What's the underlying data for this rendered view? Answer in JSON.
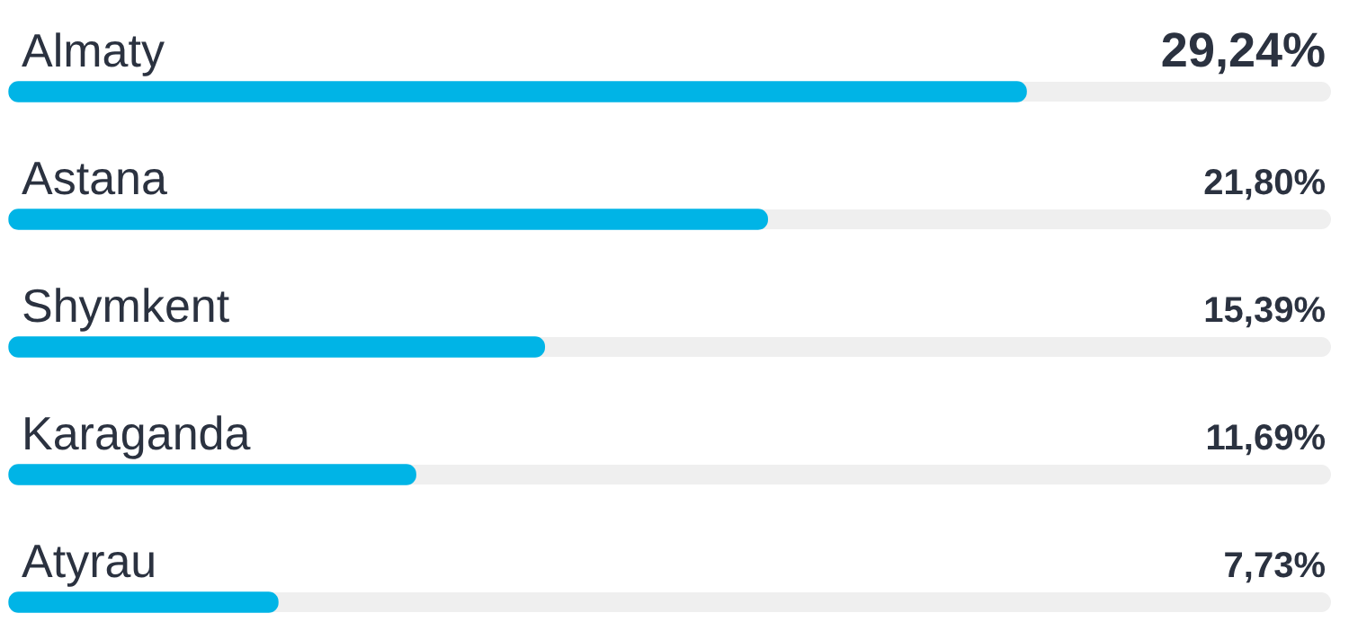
{
  "chart_data": {
    "type": "bar",
    "orientation": "horizontal",
    "categories": [
      "Almaty",
      "Astana",
      "Shymkent",
      "Karaganda",
      "Atyrau"
    ],
    "values": [
      29.24,
      21.8,
      15.39,
      11.69,
      7.73
    ],
    "value_labels": [
      "29,24%",
      "21,80%",
      "15,39%",
      "11,69%",
      "7,73%"
    ],
    "color": "#00b4e6",
    "xlim": [
      0,
      38
    ],
    "tick_labels": false,
    "grid": false,
    "legend": false
  }
}
